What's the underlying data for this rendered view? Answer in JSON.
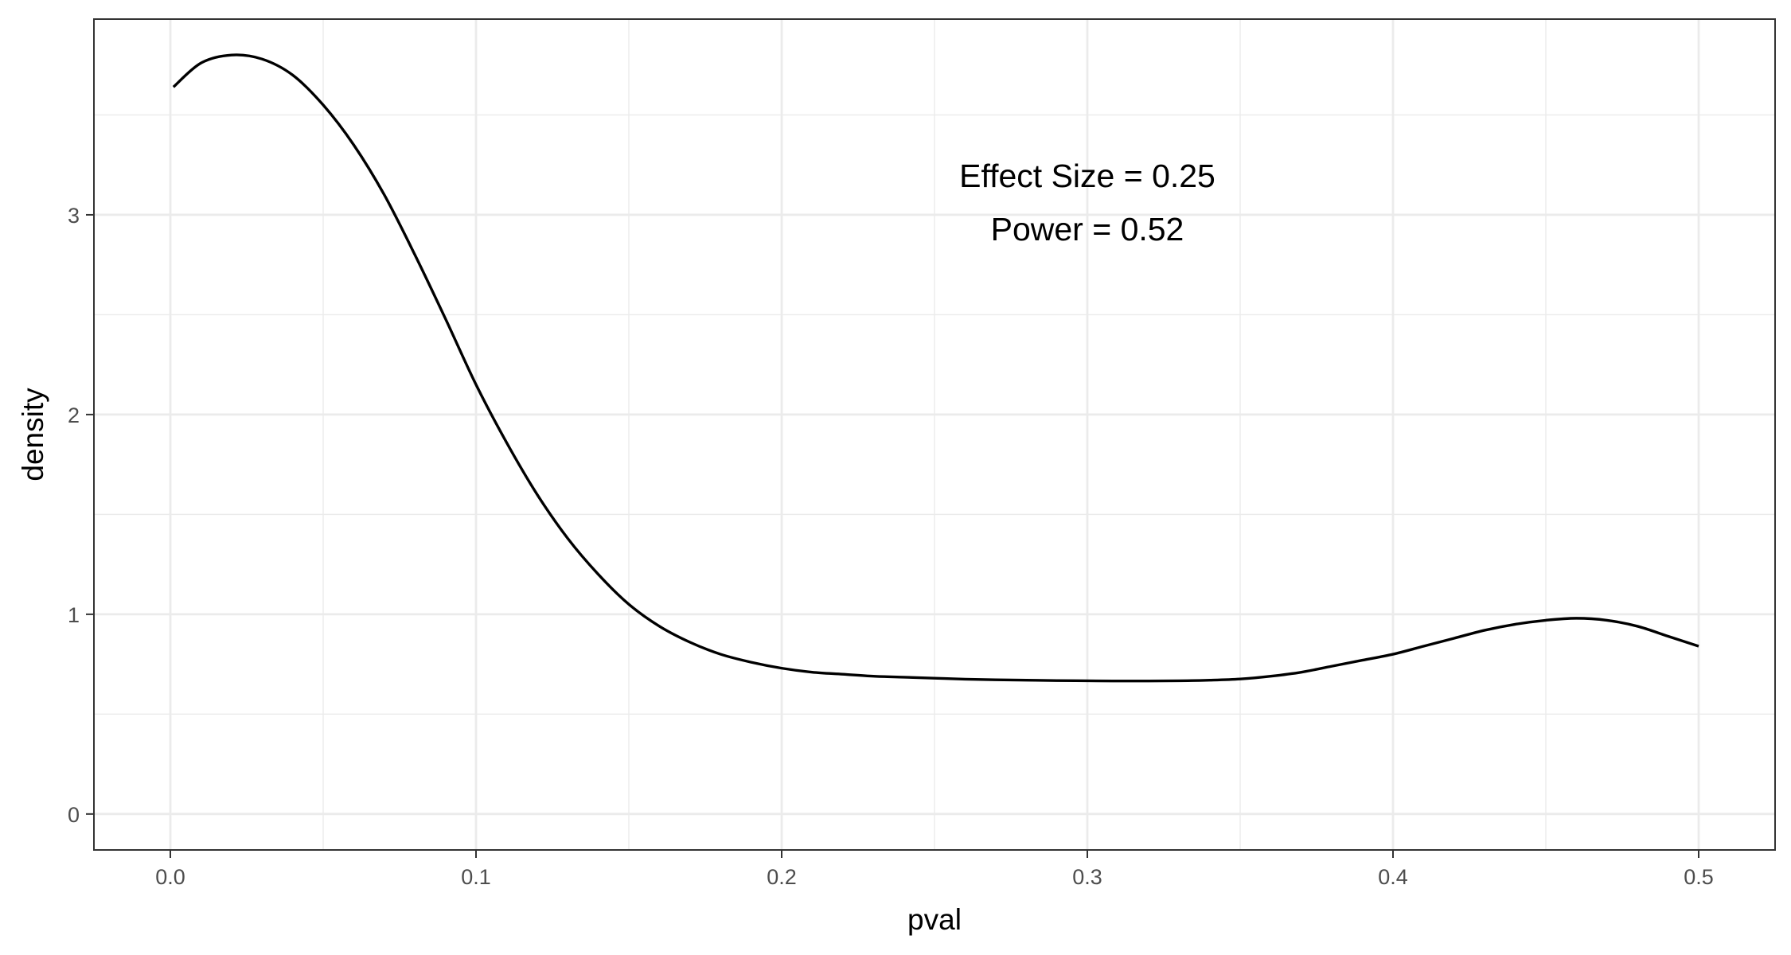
{
  "chart_data": {
    "type": "line",
    "title": "",
    "xlabel": "pval",
    "ylabel": "density",
    "xlim": [
      -0.025,
      0.525
    ],
    "ylim": [
      -0.18,
      3.98
    ],
    "xticks": [
      0.0,
      0.1,
      0.2,
      0.3,
      0.4,
      0.5
    ],
    "xtick_labels": [
      "0.0",
      "0.1",
      "0.2",
      "0.3",
      "0.4",
      "0.5"
    ],
    "yticks": [
      0,
      1,
      2,
      3
    ],
    "ytick_labels": [
      "0",
      "1",
      "2",
      "3"
    ],
    "grid": true,
    "theme": "bw",
    "line_color": "#000000",
    "annotation": {
      "lines": [
        "Effect Size = 0.25",
        "Power = 0.52"
      ],
      "x": 0.3,
      "y": 3.1
    },
    "series": [
      {
        "x": [
          0.001,
          0.01,
          0.02,
          0.03,
          0.04,
          0.05,
          0.06,
          0.07,
          0.08,
          0.09,
          0.1,
          0.11,
          0.12,
          0.13,
          0.14,
          0.15,
          0.16,
          0.17,
          0.18,
          0.19,
          0.2,
          0.21,
          0.22,
          0.23,
          0.24,
          0.25,
          0.26,
          0.27,
          0.28,
          0.29,
          0.3,
          0.31,
          0.32,
          0.33,
          0.34,
          0.35,
          0.36,
          0.37,
          0.38,
          0.39,
          0.4,
          0.41,
          0.42,
          0.43,
          0.44,
          0.45,
          0.46,
          0.47,
          0.48,
          0.49,
          0.5
        ],
        "y": [
          3.64,
          3.76,
          3.8,
          3.78,
          3.7,
          3.55,
          3.35,
          3.1,
          2.8,
          2.48,
          2.15,
          1.86,
          1.6,
          1.38,
          1.2,
          1.05,
          0.94,
          0.86,
          0.8,
          0.76,
          0.73,
          0.71,
          0.7,
          0.69,
          0.685,
          0.68,
          0.675,
          0.672,
          0.67,
          0.668,
          0.667,
          0.666,
          0.666,
          0.667,
          0.67,
          0.676,
          0.69,
          0.71,
          0.74,
          0.77,
          0.8,
          0.84,
          0.88,
          0.92,
          0.95,
          0.97,
          0.98,
          0.97,
          0.94,
          0.89,
          0.84
        ]
      }
    ]
  }
}
